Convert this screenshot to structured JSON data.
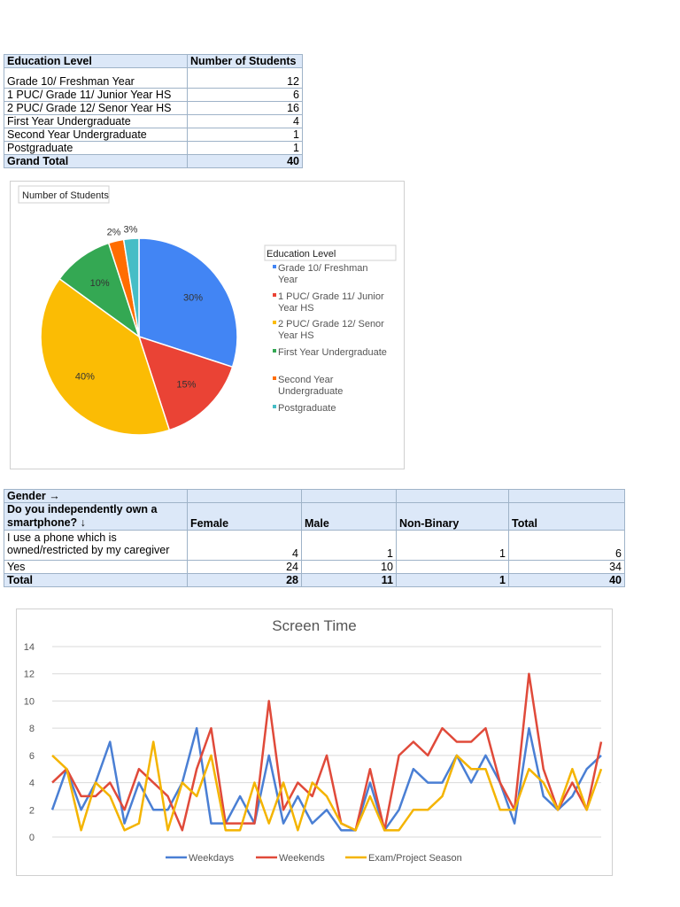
{
  "table1": {
    "headers": [
      "Education Level",
      "Number of Students"
    ],
    "rows": [
      {
        "label": "Grade 10/ Freshman Year",
        "value": "12"
      },
      {
        "label": "1 PUC/ Grade 11/ Junior Year HS",
        "value": "6"
      },
      {
        "label": "2 PUC/ Grade 12/ Senor Year HS",
        "value": "16"
      },
      {
        "label": "First Year Undergraduate",
        "value": "4"
      },
      {
        "label": "Second Year Undergraduate",
        "value": "1"
      },
      {
        "label": "Postgraduate",
        "value": "1"
      }
    ],
    "total": {
      "label": "Grand Total",
      "value": "40"
    }
  },
  "table2": {
    "gender_label": "Gender →",
    "question": "Do you independently own a smartphone? ↓",
    "columns": [
      "Female",
      "Male",
      "Non-Binary",
      "Total"
    ],
    "rows": [
      {
        "label": "I use a phone which is owned/restricted by my caregiver",
        "values": [
          "4",
          "1",
          "1",
          "6"
        ]
      },
      {
        "label": "Yes",
        "values": [
          "24",
          "10",
          "",
          "34"
        ]
      }
    ],
    "total": {
      "label": "Total",
      "values": [
        "28",
        "11",
        "1",
        "40"
      ]
    }
  },
  "chart_data": [
    {
      "type": "pie",
      "title": "Number of Students",
      "legend_title": "Education Level",
      "legend_position": "right",
      "categories": [
        "Grade 10/ Freshman Year",
        "1 PUC/ Grade 11/ Junior Year HS",
        "2 PUC/ Grade 12/ Senor Year HS",
        "First Year Undergraduate",
        "Second Year Undergraduate",
        "Postgraduate"
      ],
      "values": [
        12,
        6,
        16,
        4,
        1,
        1
      ],
      "labels": [
        "30%",
        "15%",
        "40%",
        "10%",
        "2%",
        "3%"
      ],
      "colors": [
        "#4285f4",
        "#ea4335",
        "#fbbc04",
        "#34a853",
        "#ff6d01",
        "#46bdc6"
      ]
    },
    {
      "type": "line",
      "title": "Screen Time",
      "ylim": [
        0,
        14
      ],
      "yticks": [
        0,
        2,
        4,
        6,
        8,
        10,
        12,
        14
      ],
      "grid": true,
      "legend_position": "bottom",
      "series": [
        {
          "name": "Weekdays",
          "color": "#4a7fd4",
          "values": [
            2,
            5,
            2,
            4,
            7,
            1,
            4,
            2,
            2,
            4,
            8,
            1,
            1,
            3,
            1,
            6,
            1,
            3,
            1,
            2,
            0.5,
            0.5,
            4,
            0.5,
            2,
            5,
            4,
            4,
            6,
            4,
            6,
            4,
            1,
            8,
            3,
            2,
            3,
            5,
            6
          ]
        },
        {
          "name": "Weekends",
          "color": "#e04a3a",
          "values": [
            4,
            5,
            3,
            3,
            4,
            2,
            5,
            4,
            3,
            0.5,
            5,
            8,
            1,
            1,
            1,
            10,
            2,
            4,
            3,
            6,
            1,
            0.5,
            5,
            0.5,
            6,
            7,
            6,
            8,
            7,
            7,
            8,
            4,
            2,
            12,
            5,
            2,
            4,
            2,
            7
          ]
        },
        {
          "name": "Exam/Project Season",
          "color": "#f4b400",
          "values": [
            6,
            5,
            0.5,
            4,
            3,
            0.5,
            1,
            7,
            0.5,
            4,
            3,
            6,
            0.5,
            0.5,
            4,
            1,
            4,
            0.5,
            4,
            3,
            1,
            0.5,
            3,
            0.5,
            0.5,
            2,
            2,
            3,
            6,
            5,
            5,
            2,
            2,
            5,
            4,
            2,
            5,
            2,
            5
          ]
        }
      ]
    }
  ]
}
